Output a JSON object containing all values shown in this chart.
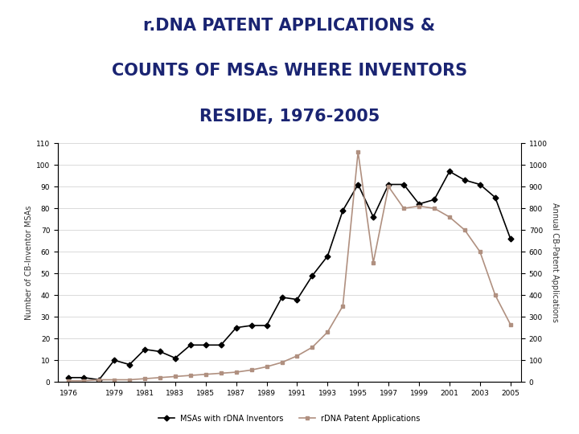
{
  "title_line1": "r.DNA PATENT APPLICATIONS &",
  "title_line2": "COUNTS OF MSAs WHERE INVENTORS",
  "title_line3": "RESIDE, 1976-2005",
  "title_color": "#1a2472",
  "ylabel_left": "Number of CB-Inventor MSAs",
  "ylabel_right": "Annual CB-Patent Applications",
  "background_color": "#ffffff",
  "msa_years": [
    1976,
    1977,
    1978,
    1979,
    1980,
    1981,
    1982,
    1983,
    1984,
    1985,
    1986,
    1987,
    1988,
    1989,
    1990,
    1991,
    1992,
    1993,
    1994,
    1995,
    1996,
    1997,
    1998,
    1999,
    2000,
    2001,
    2002,
    2003,
    2004,
    2005
  ],
  "msa_vals": [
    2,
    2,
    1,
    10,
    8,
    15,
    14,
    11,
    17,
    17,
    17,
    25,
    26,
    26,
    39,
    38,
    49,
    58,
    79,
    91,
    76,
    91,
    91,
    82,
    84,
    97,
    93,
    91,
    85,
    66
  ],
  "patent_years": [
    1976,
    1977,
    1978,
    1979,
    1980,
    1981,
    1982,
    1983,
    1984,
    1985,
    1986,
    1987,
    1988,
    1989,
    1990,
    1991,
    1992,
    1993,
    1994,
    1995,
    1996,
    1997,
    1998,
    1999,
    2000,
    2001,
    2002,
    2003,
    2004,
    2005
  ],
  "patent_vals": [
    5,
    5,
    10,
    10,
    10,
    15,
    20,
    25,
    30,
    35,
    40,
    45,
    55,
    70,
    90,
    120,
    160,
    230,
    350,
    1060,
    550,
    900,
    800,
    810,
    800,
    760,
    700,
    600,
    400,
    265
  ],
  "msa_color": "#000000",
  "patent_color": "#b09080",
  "legend_msa": "MSAs with rDNA Inventors",
  "legend_patent": "rDNA Patent Applications",
  "ylim_left": [
    0,
    110
  ],
  "ylim_right": [
    0,
    1100
  ],
  "yticks_left": [
    0,
    10,
    20,
    30,
    40,
    50,
    60,
    70,
    80,
    90,
    100,
    110
  ],
  "yticks_right": [
    0,
    100,
    200,
    300,
    400,
    500,
    600,
    700,
    800,
    900,
    1000,
    1100
  ],
  "xtick_years": [
    1976,
    1979,
    1981,
    1983,
    1985,
    1987,
    1989,
    1991,
    1993,
    1995,
    1997,
    1999,
    2001,
    2003,
    2005
  ]
}
